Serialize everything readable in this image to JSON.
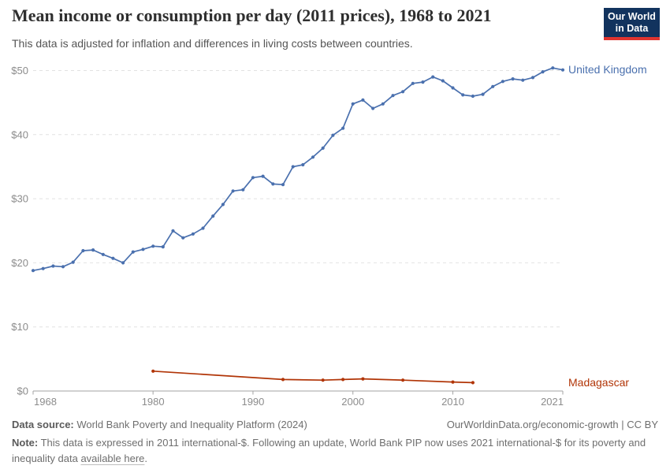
{
  "header": {
    "title": "Mean income or consumption per day (2011 prices), 1968 to 2021",
    "subtitle": "This data is adjusted for inflation and differences in living costs between countries.",
    "logo": {
      "line1": "Our World",
      "line2": "in Data"
    }
  },
  "chart_data": {
    "type": "line",
    "title": "Mean income or consumption per day (2011 prices), 1968 to 2021",
    "xlabel": "",
    "ylabel": "",
    "xlim": [
      1968,
      2021
    ],
    "ylim": [
      0,
      50
    ],
    "grid": "horizontal-dashed",
    "legend_position": "labels-at-line-end-right",
    "x_tick_values": [
      1968,
      1980,
      1990,
      2000,
      2010,
      2021
    ],
    "x_tick_labels": [
      "1968",
      "1980",
      "1990",
      "2000",
      "2010",
      "2021"
    ],
    "y_tick_values": [
      0,
      10,
      20,
      30,
      40,
      50
    ],
    "y_tick_labels": [
      "$0",
      "$10",
      "$20",
      "$30",
      "$40",
      "$50"
    ],
    "colors": {
      "grid": "#e2e2e2",
      "axis": "#a3a3a3",
      "tick_text": "#8c8c8c"
    },
    "series": [
      {
        "name": "United Kingdom",
        "color": "#4a70ae",
        "x": [
          1968,
          1969,
          1970,
          1971,
          1972,
          1973,
          1974,
          1975,
          1976,
          1977,
          1978,
          1979,
          1980,
          1981,
          1982,
          1983,
          1984,
          1985,
          1986,
          1987,
          1988,
          1989,
          1990,
          1991,
          1992,
          1993,
          1994,
          1995,
          1996,
          1997,
          1998,
          1999,
          2000,
          2001,
          2002,
          2003,
          2004,
          2005,
          2006,
          2007,
          2008,
          2009,
          2010,
          2011,
          2012,
          2013,
          2014,
          2015,
          2016,
          2017,
          2018,
          2019,
          2020,
          2021
        ],
        "values": [
          18.8,
          19.1,
          19.5,
          19.4,
          20.1,
          21.9,
          22.0,
          21.3,
          20.7,
          20.0,
          21.7,
          22.1,
          22.6,
          22.5,
          25.0,
          23.9,
          24.5,
          25.4,
          27.3,
          29.1,
          31.2,
          31.4,
          33.3,
          33.5,
          32.3,
          32.2,
          35.0,
          35.3,
          36.5,
          37.9,
          39.9,
          41.0,
          44.8,
          45.4,
          44.1,
          44.8,
          46.1,
          46.7,
          48.0,
          48.2,
          49.0,
          48.4,
          47.3,
          46.2,
          46.0,
          46.3,
          47.5,
          48.3,
          48.7,
          48.5,
          48.9,
          49.8,
          50.4,
          50.1
        ]
      },
      {
        "name": "Madagascar",
        "color": "#b13507",
        "x": [
          1980,
          1993,
          1997,
          1999,
          2001,
          2005,
          2010,
          2012
        ],
        "values": [
          3.1,
          1.8,
          1.7,
          1.8,
          1.9,
          1.7,
          1.4,
          1.3
        ]
      }
    ]
  },
  "footer": {
    "source_label": "Data source:",
    "source_value": " World Bank Poverty and Inequality Platform (2024)",
    "rights": "OurWorldinData.org/economic-growth | CC BY",
    "note_label": "Note:",
    "note_value": " This data is expressed in 2011 international-$. Following an update, World Bank PIP now uses 2021 international-$ for its poverty and inequality data ",
    "note_link": "available here",
    "note_period": "."
  }
}
